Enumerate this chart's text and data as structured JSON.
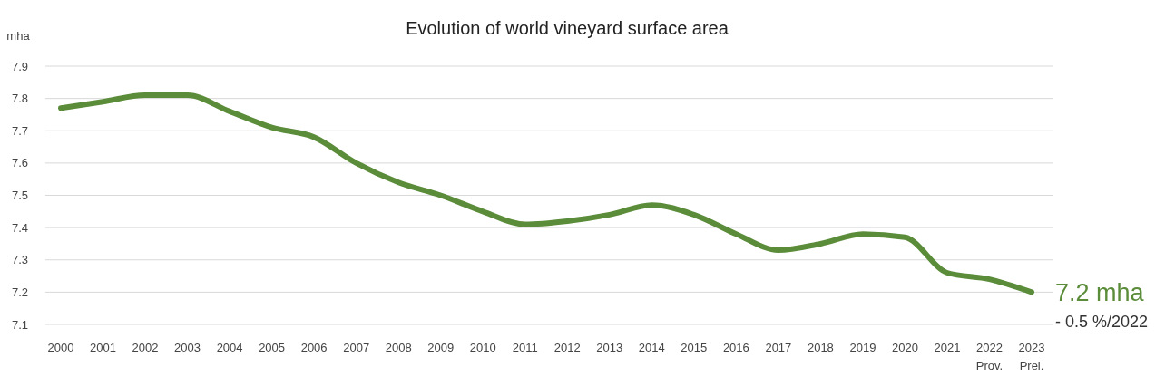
{
  "chart_data": {
    "type": "line",
    "title": "Evolution of world vineyard surface area",
    "ylabel": "mha",
    "categories": [
      "2000",
      "2001",
      "2002",
      "2003",
      "2004",
      "2005",
      "2006",
      "2007",
      "2008",
      "2009",
      "2010",
      "2011",
      "2012",
      "2013",
      "2014",
      "2015",
      "2016",
      "2017",
      "2018",
      "2019",
      "2020",
      "2021",
      "2022\nProv.",
      "2023\nPrel."
    ],
    "series": [
      {
        "color": "#5b8c3a",
        "values": [
          7.77,
          7.79,
          7.81,
          7.81,
          7.76,
          7.71,
          7.68,
          7.6,
          7.54,
          7.5,
          7.45,
          7.41,
          7.42,
          7.44,
          7.47,
          7.44,
          7.38,
          7.33,
          7.35,
          7.38,
          7.37,
          7.26,
          7.24,
          7.2
        ]
      }
    ],
    "ylim": [
      7.1,
      7.9
    ],
    "yticks": [
      7.1,
      7.2,
      7.3,
      7.4,
      7.5,
      7.6,
      7.7,
      7.8,
      7.9
    ],
    "grid": "y",
    "marker": "none",
    "line_style": "solid",
    "annotations": [
      {
        "text": "7.2 mha",
        "x": "2023\nPrel.",
        "y": 7.2
      },
      "- 0.5 %/2022"
    ]
  }
}
